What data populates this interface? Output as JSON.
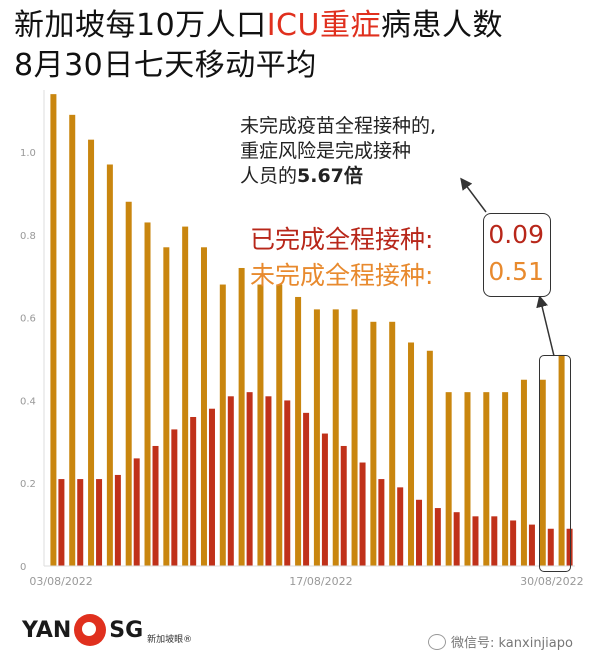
{
  "title": {
    "line1_prefix": "新加坡每10万人口",
    "line1_red": "ICU重症",
    "line1_suffix": "病患人数",
    "line2": "8月30日七天移动平均"
  },
  "annotation": {
    "line1": "未完成疫苗全程接种的,",
    "line2": "重症风险是完成接种",
    "line3_prefix": "人员的",
    "line3_bold": "5.67倍"
  },
  "legend": {
    "vaccinated_label": "已完成全程接种:",
    "vaccinated_value": "0.09",
    "unvaccinated_label": "未完成全程接种:",
    "unvaccinated_value": "0.51"
  },
  "colors": {
    "vaccinated": "#c0311a",
    "unvaccinated": "#c9860f",
    "title_accent": "#e0301e"
  },
  "logo": {
    "left": "YAN",
    "right": "SG",
    "sub": "新加坡眼®"
  },
  "watermark": "微信号: kanxinjiapo",
  "chart_data": {
    "type": "bar",
    "ylim": [
      0,
      1.15
    ],
    "yticks": [
      0,
      0.2,
      0.4,
      0.6,
      0.8,
      1.0
    ],
    "ytick_labels": [
      "0",
      "0.2",
      "0.4",
      "0.6",
      "0.8",
      "1.0"
    ],
    "xtick_labels": [
      "03/08/2022",
      "17/08/2022",
      "30/08/2022"
    ],
    "xtick_index": [
      0,
      14,
      27
    ],
    "categories": [
      "03/08/2022",
      "04/08/2022",
      "05/08/2022",
      "06/08/2022",
      "07/08/2022",
      "08/08/2022",
      "09/08/2022",
      "10/08/2022",
      "11/08/2022",
      "12/08/2022",
      "13/08/2022",
      "14/08/2022",
      "15/08/2022",
      "16/08/2022",
      "17/08/2022",
      "18/08/2022",
      "19/08/2022",
      "20/08/2022",
      "21/08/2022",
      "22/08/2022",
      "23/08/2022",
      "24/08/2022",
      "25/08/2022",
      "26/08/2022",
      "27/08/2022",
      "28/08/2022",
      "29/08/2022",
      "30/08/2022"
    ],
    "series": [
      {
        "values": [
          1.14,
          1.09,
          1.03,
          0.97,
          0.88,
          0.83,
          0.77,
          0.82,
          0.77,
          0.68,
          0.72,
          0.68,
          0.68,
          0.65,
          0.62,
          0.62,
          0.62,
          0.59,
          0.59,
          0.54,
          0.52,
          0.42,
          0.42,
          0.42,
          0.42,
          0.45,
          0.45,
          0.51
        ]
      },
      {
        "values": [
          0.21,
          0.21,
          0.21,
          0.22,
          0.26,
          0.29,
          0.33,
          0.36,
          0.38,
          0.41,
          0.42,
          0.41,
          0.4,
          0.37,
          0.32,
          0.29,
          0.25,
          0.21,
          0.19,
          0.16,
          0.14,
          0.13,
          0.12,
          0.12,
          0.11,
          0.1,
          0.09,
          0.09
        ]
      }
    ],
    "grid": false
  }
}
